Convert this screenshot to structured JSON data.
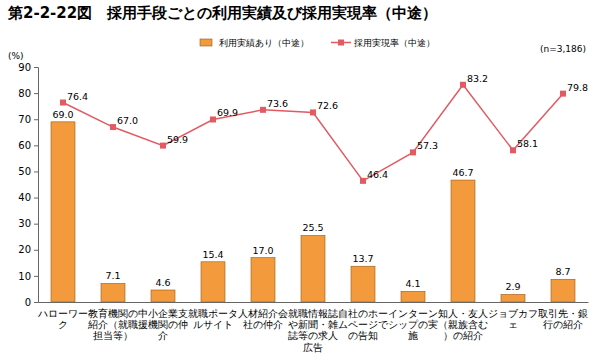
{
  "chart_data": {
    "type": "bar",
    "title": "第2-2-22図　採用手段ごとの利用実績及び採用実現率（中途）",
    "ylabel": "(%)",
    "annotations": [
      "(n=3,186)"
    ],
    "categories": [
      "ハローワーク",
      "教育機関の紹介（就職担当等）",
      "中小企業支援機関の仲介",
      "就職ポータルサイト",
      "人材紹介会社の仲介",
      "就職情報誌や新聞・雑誌等の求人広告",
      "自社のホームページでの告知",
      "インターンシップの実施",
      "知人・友人（親族含む）の紹介",
      "ジョブカフェ",
      "取引先・銀行の紹介"
    ],
    "series": [
      {
        "name": "利用実績あり（中途）",
        "type": "bar",
        "color": "#f39a3c",
        "values": [
          69.0,
          7.1,
          4.6,
          15.4,
          17.0,
          25.5,
          13.7,
          4.1,
          46.7,
          2.9,
          8.7
        ],
        "value_labels": [
          "69.0",
          "7.1",
          "4.6",
          "15.4",
          "17.0",
          "25.5",
          "13.7",
          "4.1",
          "46.7",
          "2.9",
          "8.7"
        ]
      },
      {
        "name": "採用実現率（中途）",
        "type": "line",
        "color": "#e35a62",
        "marker": "square",
        "values": [
          76.4,
          67.0,
          59.9,
          69.9,
          73.6,
          72.6,
          46.4,
          57.3,
          83.2,
          58.1,
          79.8
        ],
        "value_labels": [
          "76.4",
          "67.0",
          "59.9",
          "69.9",
          "73.6",
          "72.6",
          "46.4",
          "57.3",
          "83.2",
          "58.1",
          "79.8"
        ]
      }
    ],
    "ylim": [
      0,
      90
    ],
    "yticks": [
      0,
      10,
      20,
      30,
      40,
      50,
      60,
      70,
      80,
      90
    ],
    "legend": "top",
    "data_labels": true,
    "grid": false
  }
}
